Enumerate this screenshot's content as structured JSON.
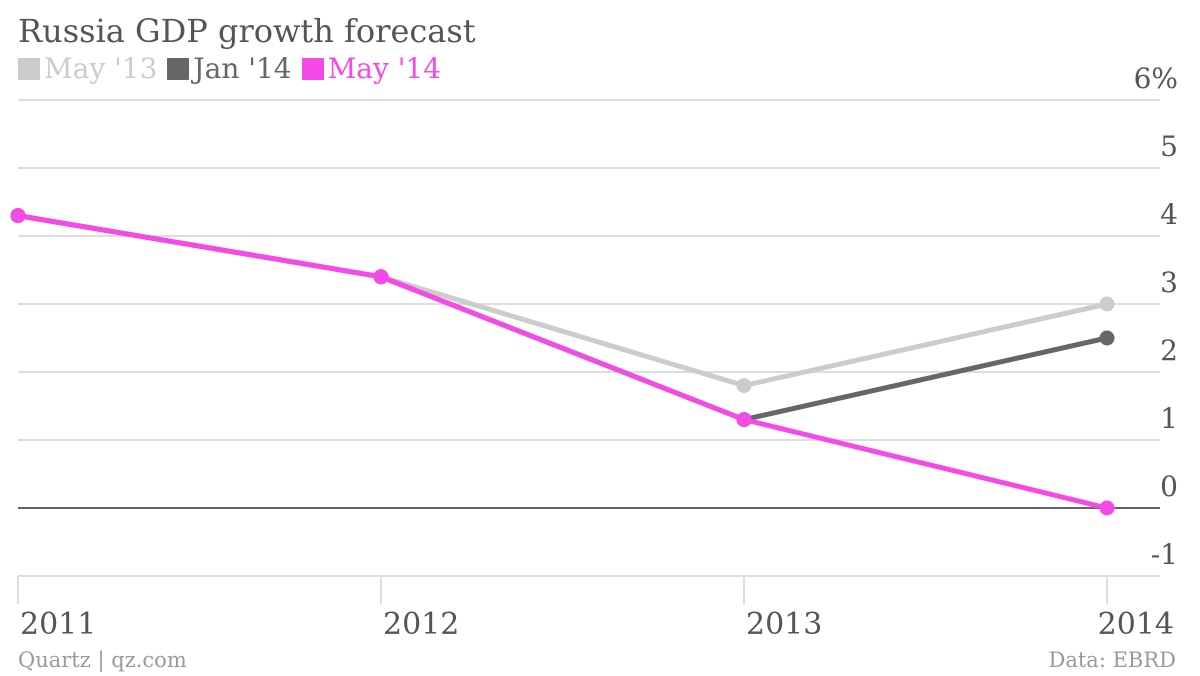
{
  "chart_data": {
    "type": "line",
    "title": "Russia GDP growth forecast",
    "x": [
      "2011",
      "2012",
      "2013",
      "2014"
    ],
    "y_ticks": [
      "6%",
      "5",
      "4",
      "3",
      "2",
      "1",
      "0",
      "-1"
    ],
    "y_tick_values": [
      6,
      5,
      4,
      3,
      2,
      1,
      0,
      -1
    ],
    "ylim": [
      -1,
      6
    ],
    "grid": true,
    "legend_position": "top-left",
    "series": [
      {
        "name": "May '13",
        "color": "#cccccc",
        "values": [
          4.3,
          3.4,
          1.8,
          3.0
        ]
      },
      {
        "name": "Jan '14",
        "color": "#666666",
        "values": [
          4.3,
          3.4,
          1.3,
          2.5
        ]
      },
      {
        "name": "May '14",
        "color": "#f549e8",
        "values": [
          4.3,
          3.4,
          1.3,
          0.0
        ]
      }
    ]
  },
  "footer": {
    "source_left": "Quartz | qz.com",
    "source_right": "Data: EBRD"
  }
}
